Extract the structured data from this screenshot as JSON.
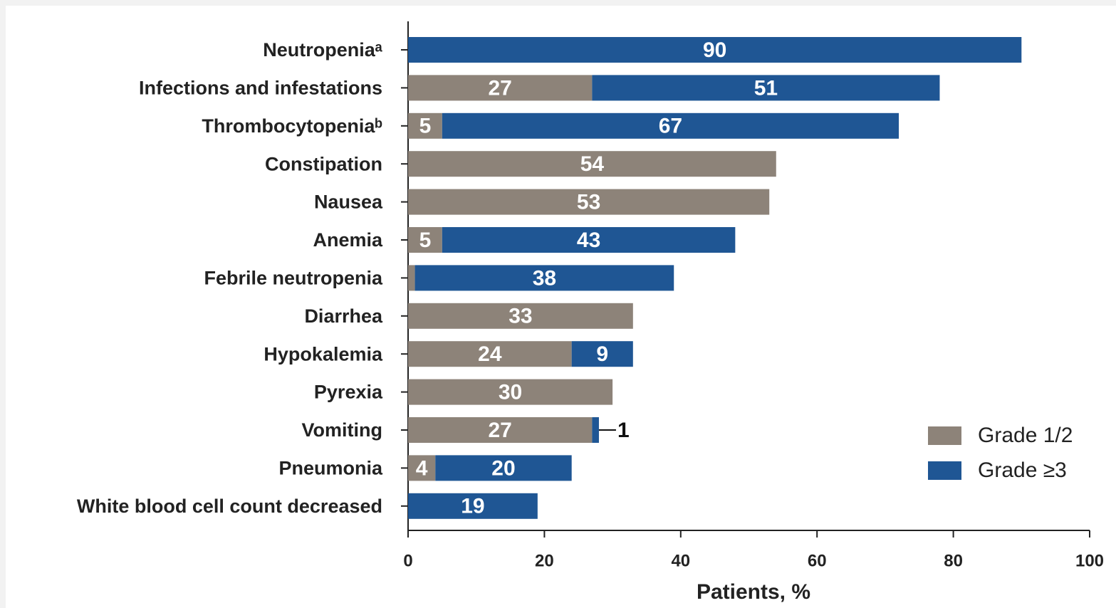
{
  "chart_data": {
    "type": "stacked-bar-horizontal",
    "categories": [
      "Neutropeniaᵃ",
      "Infections and infestations",
      "Thrombocytopeniaᵇ",
      "Constipation",
      "Nausea",
      "Anemia",
      "Febrile neutropenia",
      "Diarrhea",
      "Hypokalemia",
      "Pyrexia",
      "Vomiting",
      "Pneumonia",
      "White blood cell count decreased"
    ],
    "series": [
      {
        "name": "Grade 1/2",
        "color": "#8d8379",
        "values": [
          null,
          27,
          5,
          54,
          53,
          5,
          1,
          33,
          24,
          30,
          27,
          4,
          null
        ]
      },
      {
        "name": "Grade ≥3",
        "color": "#1f5694",
        "values": [
          90,
          51,
          67,
          null,
          null,
          43,
          38,
          null,
          9,
          null,
          1,
          20,
          19
        ]
      }
    ],
    "x_label": "Patients, %",
    "xlim": [
      0,
      100
    ],
    "xticks": [
      0,
      20,
      40,
      60,
      80,
      100
    ],
    "legend": "lower right"
  }
}
